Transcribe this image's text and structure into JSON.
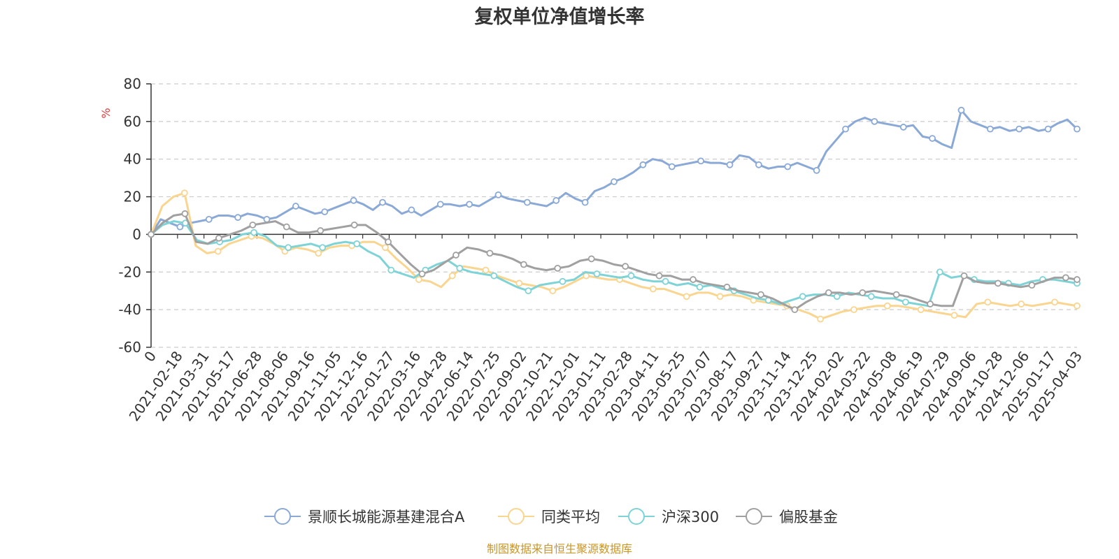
{
  "chart_data": {
    "type": "line",
    "title": "复权单位净值增长率",
    "ylabel": "%",
    "xlabel": "",
    "ylim": [
      -60,
      80
    ],
    "yticks": [
      80,
      60,
      40,
      20,
      0,
      -20,
      -40,
      -60
    ],
    "grid": true,
    "legend_position": "bottom-center",
    "x_origin_label": "0",
    "x_ticks": [
      "2021-02-18",
      "2021-03-31",
      "2021-05-17",
      "2021-06-28",
      "2021-08-06",
      "2021-09-16",
      "2021-11-05",
      "2021-12-16",
      "2022-01-27",
      "2022-03-16",
      "2022-04-28",
      "2022-06-14",
      "2022-07-25",
      "2022-09-02",
      "2022-10-21",
      "2022-12-01",
      "2023-01-11",
      "2023-02-28",
      "2023-04-11",
      "2023-05-25",
      "2023-07-07",
      "2023-08-17",
      "2023-09-27",
      "2023-11-14",
      "2023-12-25",
      "2024-02-02",
      "2024-03-22",
      "2024-05-08",
      "2024-06-19",
      "2024-07-29",
      "2024-09-06",
      "2024-10-28",
      "2024-12-06",
      "2025-01-17",
      "2025-04-03"
    ],
    "series": [
      {
        "name": "景顺长城能源基建混合A",
        "color": "#8aa9d6",
        "values": [
          0,
          8,
          6,
          4,
          6,
          7,
          8,
          10,
          10,
          9,
          11,
          10,
          8,
          9,
          12,
          15,
          13,
          11,
          12,
          14,
          16,
          18,
          16,
          13,
          17,
          15,
          11,
          13,
          10,
          13,
          16,
          16,
          15,
          16,
          15,
          18,
          21,
          19,
          18,
          17,
          16,
          15,
          18,
          22,
          19,
          17,
          23,
          25,
          28,
          30,
          33,
          37,
          40,
          39,
          36,
          37,
          38,
          39,
          38,
          38,
          37,
          42,
          41,
          37,
          35,
          36,
          36,
          38,
          36,
          34,
          44,
          50,
          56,
          60,
          62,
          60,
          59,
          58,
          57,
          58,
          52,
          51,
          48,
          46,
          66,
          60,
          58,
          56,
          57,
          55,
          56,
          57,
          55,
          56,
          59,
          61,
          56
        ]
      },
      {
        "name": "同类平均",
        "color": "#f9d58f",
        "values": [
          0,
          15,
          20,
          22,
          -6,
          -10,
          -9,
          -5,
          -3,
          -1,
          -2,
          -5,
          -9,
          -7,
          -8,
          -10,
          -7,
          -6,
          -6,
          -4,
          -4,
          -7,
          -13,
          -18,
          -24,
          -25,
          -28,
          -22,
          -17,
          -18,
          -19,
          -22,
          -24,
          -26,
          -27,
          -28,
          -30,
          -28,
          -25,
          -22,
          -23,
          -24,
          -24,
          -26,
          -28,
          -29,
          -29,
          -31,
          -33,
          -31,
          -31,
          -33,
          -32,
          -33,
          -35,
          -36,
          -37,
          -38,
          -40,
          -42,
          -45,
          -43,
          -41,
          -40,
          -39,
          -38,
          -38,
          -38,
          -39,
          -40,
          -41,
          -42,
          -43,
          -44,
          -37,
          -36,
          -37,
          -38,
          -37,
          -38,
          -37,
          -36,
          -37,
          -38
        ]
      },
      {
        "name": "沪深300",
        "color": "#7dd3d6",
        "values": [
          0,
          5,
          7,
          6,
          -3,
          -5,
          -4,
          -3,
          0,
          1,
          -1,
          -6,
          -7,
          -6,
          -5,
          -7,
          -5,
          -4,
          -5,
          -9,
          -12,
          -19,
          -21,
          -23,
          -19,
          -16,
          -14,
          -18,
          -20,
          -21,
          -22,
          -25,
          -28,
          -30,
          -27,
          -26,
          -25,
          -24,
          -20,
          -21,
          -22,
          -23,
          -22,
          -24,
          -25,
          -25,
          -27,
          -26,
          -28,
          -27,
          -29,
          -30,
          -32,
          -34,
          -35,
          -37,
          -35,
          -33,
          -32,
          -32,
          -33,
          -31,
          -32,
          -33,
          -34,
          -34,
          -36,
          -37,
          -38,
          -20,
          -23,
          -22,
          -24,
          -25,
          -25,
          -26,
          -27,
          -25,
          -24,
          -24,
          -25,
          -26
        ]
      },
      {
        "name": "偏股基金",
        "color": "#a0a0a0",
        "values": [
          0,
          6,
          10,
          11,
          -4,
          -5,
          -2,
          0,
          2,
          5,
          6,
          7,
          4,
          1,
          1,
          2,
          3,
          4,
          5,
          5,
          1,
          -4,
          -10,
          -16,
          -21,
          -19,
          -15,
          -11,
          -7,
          -8,
          -10,
          -11,
          -13,
          -16,
          -18,
          -19,
          -18,
          -17,
          -14,
          -13,
          -14,
          -16,
          -17,
          -19,
          -21,
          -22,
          -22,
          -24,
          -24,
          -26,
          -27,
          -28,
          -30,
          -31,
          -32,
          -34,
          -37,
          -40,
          -36,
          -33,
          -31,
          -31,
          -32,
          -31,
          -30,
          -31,
          -32,
          -33,
          -35,
          -37,
          -38,
          -38,
          -22,
          -25,
          -26,
          -26,
          -27,
          -28,
          -27,
          -25,
          -23,
          -23,
          -24
        ]
      }
    ]
  },
  "source_note": "制图数据来自恒生聚源数据库"
}
